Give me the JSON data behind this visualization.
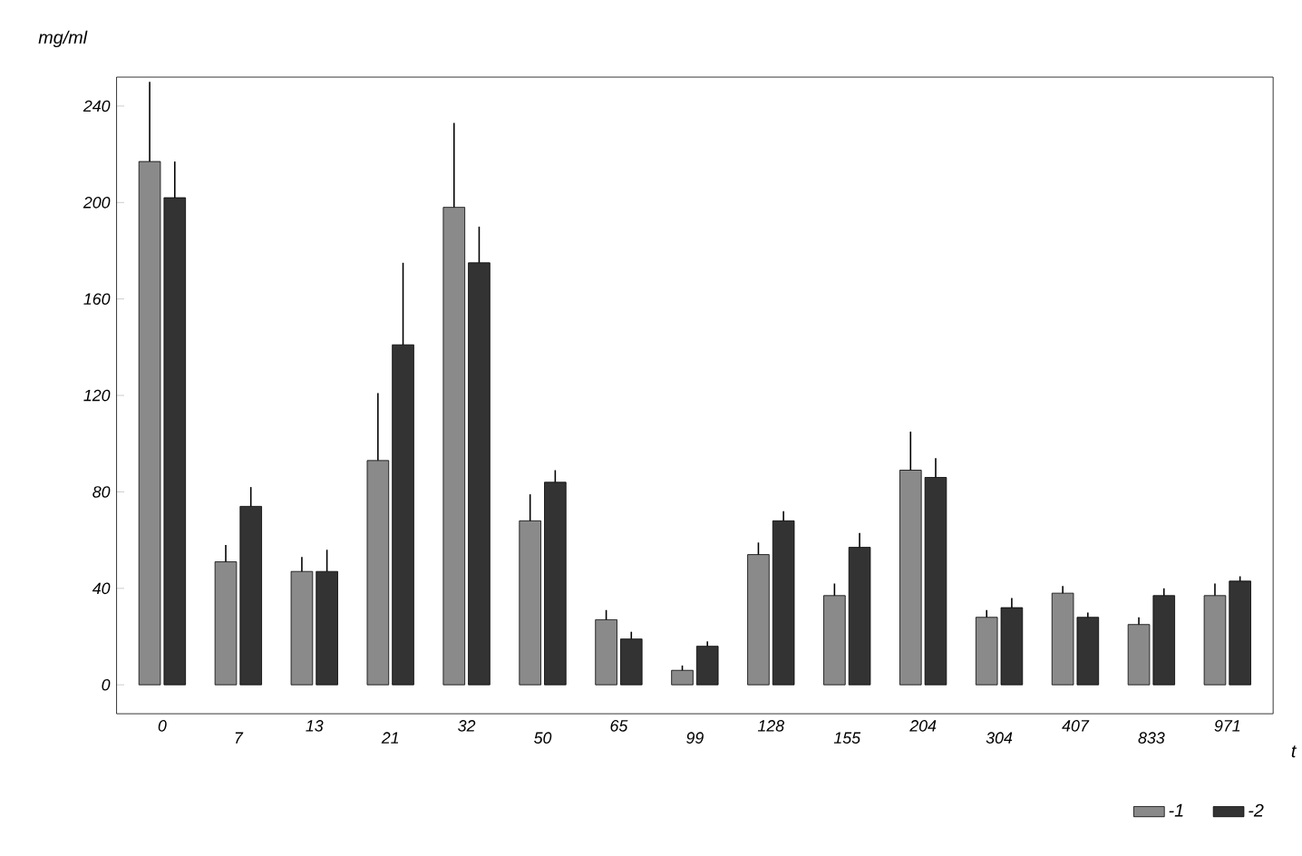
{
  "chart_data": {
    "type": "bar",
    "xlabel": "t",
    "ylabel": "mg/ml",
    "categories": [
      "0",
      "7",
      "13",
      "21",
      "32",
      "50",
      "65",
      "99",
      "128",
      "155",
      "204",
      "304",
      "407",
      "833",
      "971"
    ],
    "series": [
      {
        "name": "-1",
        "color": "#8a8a8a",
        "values": [
          217,
          51,
          47,
          93,
          198,
          68,
          27,
          6,
          54,
          37,
          89,
          28,
          38,
          25,
          37
        ],
        "errors": [
          [
            217,
            250
          ],
          [
            51,
            58
          ],
          [
            47,
            53
          ],
          [
            93,
            121
          ],
          [
            198,
            233
          ],
          [
            68,
            79
          ],
          [
            27,
            31
          ],
          [
            6,
            8
          ],
          [
            54,
            59
          ],
          [
            37,
            42
          ],
          [
            89,
            105
          ],
          [
            28,
            31
          ],
          [
            38,
            41
          ],
          [
            25,
            28
          ],
          [
            37,
            42
          ]
        ]
      },
      {
        "name": "-2",
        "color": "#333333",
        "values": [
          202,
          74,
          47,
          141,
          175,
          84,
          19,
          16,
          68,
          57,
          86,
          32,
          28,
          37,
          43
        ],
        "errors": [
          [
            202,
            217
          ],
          [
            74,
            82
          ],
          [
            47,
            56
          ],
          [
            141,
            175
          ],
          [
            175,
            190
          ],
          [
            84,
            89
          ],
          [
            19,
            22
          ],
          [
            16,
            18
          ],
          [
            68,
            72
          ],
          [
            57,
            63
          ],
          [
            86,
            94
          ],
          [
            32,
            36
          ],
          [
            28,
            30
          ],
          [
            37,
            40
          ],
          [
            43,
            45
          ]
        ]
      }
    ],
    "ylim": [
      -12,
      252
    ],
    "yticks": [
      0,
      40,
      80,
      120,
      160,
      200,
      240
    ],
    "grid": false,
    "legend": "bottom right"
  }
}
